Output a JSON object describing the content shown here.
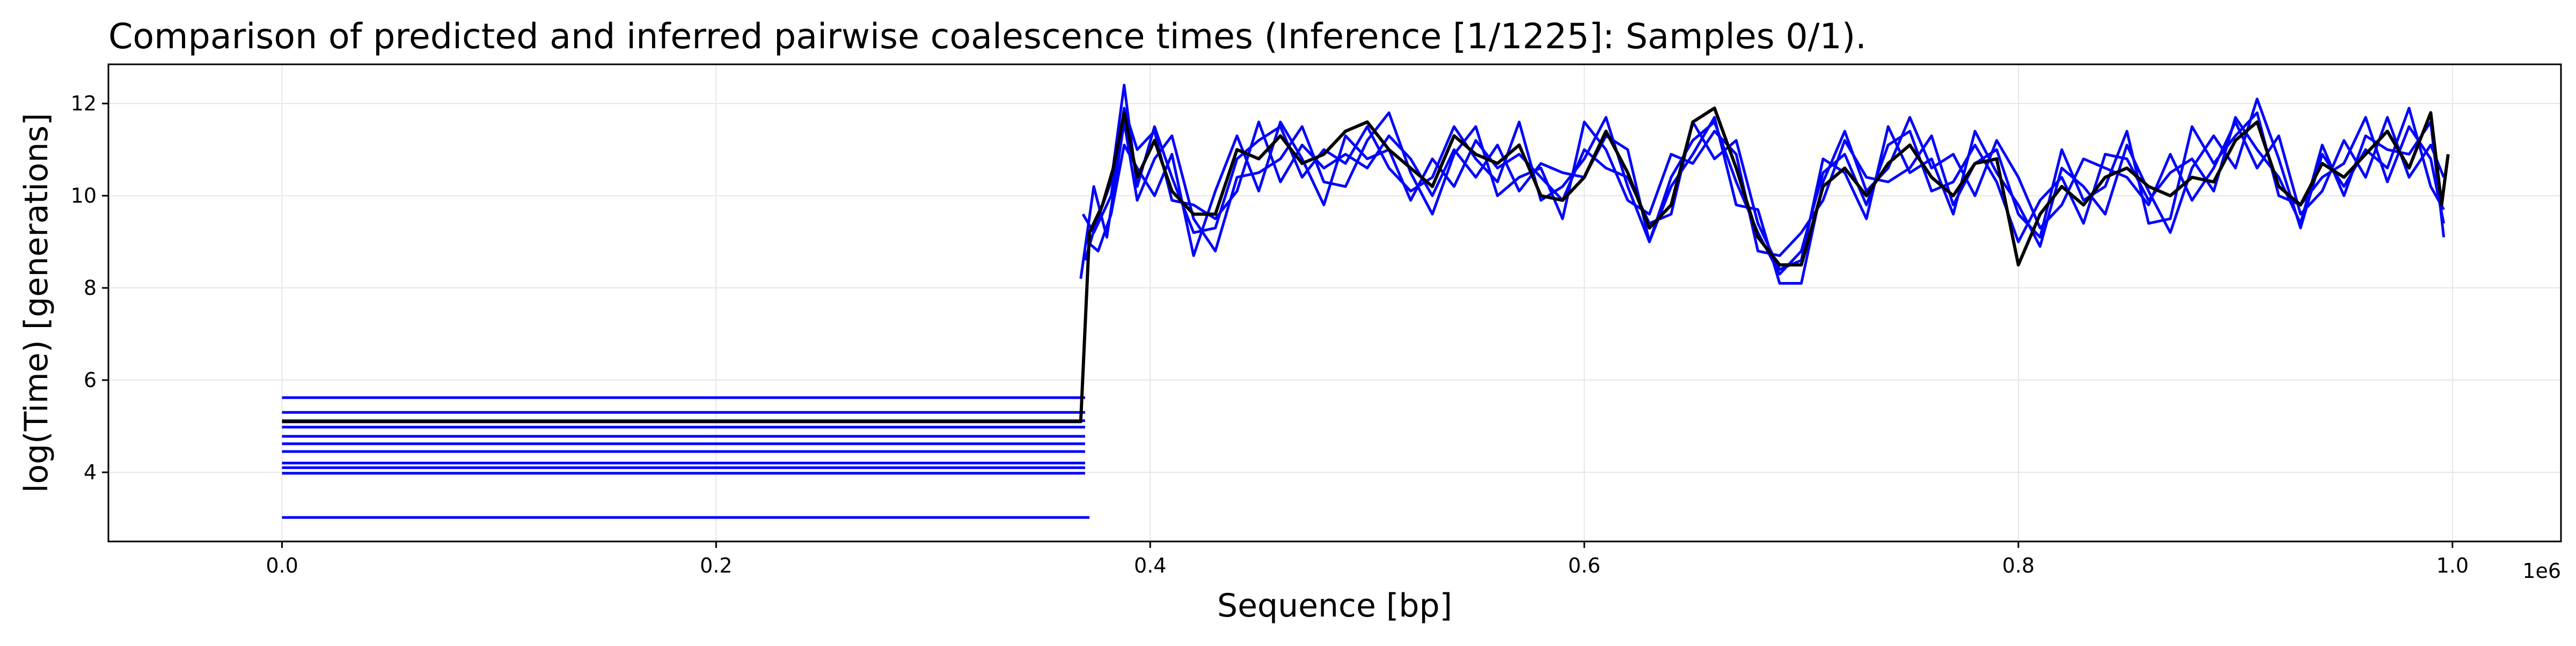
{
  "chart_data": {
    "type": "line",
    "title": "Comparison of predicted and inferred pairwise coalescence times (Inference [1/1225]: Samples 0/1).",
    "xlabel": "Sequence [bp]",
    "ylabel": "log(Time) [generations]",
    "x_offset_label": "1e6",
    "xlim": [
      -80000,
      1050000
    ],
    "ylim": [
      2.5,
      12.85
    ],
    "x_ticks": [
      0,
      200000,
      400000,
      600000,
      800000,
      1000000
    ],
    "x_tick_labels": [
      "0.0",
      "0.2",
      "0.4",
      "0.6",
      "0.8",
      "1.0"
    ],
    "y_ticks": [
      4,
      6,
      8,
      10,
      12
    ],
    "y_tick_labels": [
      "4",
      "6",
      "8",
      "10",
      "12"
    ],
    "grid": true,
    "colors": {
      "inferred": "#0000ff",
      "true": "#000000",
      "grid": "#e6e6e6",
      "axes": "#000000"
    },
    "series": [
      {
        "role": "true",
        "x": [
          0,
          368000,
          372000,
          378000,
          383000,
          388000,
          394000,
          402000,
          410000,
          420000,
          430000,
          440000,
          450000,
          460000,
          470000,
          480000,
          490000,
          500000,
          510000,
          520000,
          530000,
          540000,
          550000,
          560000,
          570000,
          580000,
          590000,
          600000,
          610000,
          620000,
          630000,
          640000,
          650000,
          660000,
          670000,
          680000,
          690000,
          700000,
          710000,
          720000,
          730000,
          740000,
          750000,
          760000,
          770000,
          780000,
          790000,
          800000,
          810000,
          820000,
          830000,
          840000,
          850000,
          860000,
          870000,
          880000,
          890000,
          900000,
          910000,
          920000,
          930000,
          940000,
          950000,
          960000,
          970000,
          980000,
          990000,
          995000,
          998000
        ],
        "y": [
          5.1,
          5.1,
          9.2,
          9.8,
          10.6,
          11.8,
          10.4,
          11.2,
          10.1,
          9.6,
          9.6,
          11.0,
          10.8,
          11.3,
          10.7,
          10.9,
          11.4,
          11.6,
          11.0,
          10.6,
          10.2,
          11.3,
          10.9,
          10.7,
          11.1,
          10.0,
          9.9,
          10.4,
          11.4,
          10.5,
          9.3,
          9.8,
          11.6,
          11.9,
          10.6,
          9.1,
          8.5,
          8.5,
          10.2,
          10.6,
          10.0,
          10.7,
          11.1,
          10.4,
          10.0,
          10.7,
          10.8,
          8.5,
          9.6,
          10.2,
          9.8,
          10.4,
          10.6,
          10.2,
          10.0,
          10.4,
          10.3,
          11.2,
          11.6,
          10.2,
          9.8,
          10.7,
          10.4,
          10.9,
          11.4,
          10.6,
          11.8,
          9.8,
          10.9
        ]
      },
      {
        "role": "inferred",
        "x": [
          0,
          370000
        ],
        "y": [
          5.62,
          5.62
        ]
      },
      {
        "role": "inferred",
        "x": [
          0,
          370000
        ],
        "y": [
          5.3,
          5.3
        ]
      },
      {
        "role": "inferred",
        "x": [
          0,
          370000
        ],
        "y": [
          5.12,
          5.12
        ]
      },
      {
        "role": "inferred",
        "x": [
          0,
          370000
        ],
        "y": [
          4.98,
          4.98
        ]
      },
      {
        "role": "inferred",
        "x": [
          0,
          370000
        ],
        "y": [
          4.78,
          4.78
        ]
      },
      {
        "role": "inferred",
        "x": [
          0,
          370000
        ],
        "y": [
          4.62,
          4.62
        ]
      },
      {
        "role": "inferred",
        "x": [
          0,
          370000
        ],
        "y": [
          4.45,
          4.45
        ]
      },
      {
        "role": "inferred",
        "x": [
          0,
          370000
        ],
        "y": [
          4.2,
          4.2
        ]
      },
      {
        "role": "inferred",
        "x": [
          0,
          370000
        ],
        "y": [
          4.1,
          4.1
        ]
      },
      {
        "role": "inferred",
        "x": [
          0,
          370000
        ],
        "y": [
          3.98,
          3.98
        ]
      },
      {
        "role": "inferred",
        "x": [
          0,
          372000
        ],
        "y": [
          3.02,
          3.02
        ]
      },
      {
        "role": "inferred",
        "x": [
          370000,
          375000,
          382000,
          388000,
          394000,
          402000,
          410000,
          420000,
          430000,
          440000,
          450000,
          460000,
          470000,
          480000,
          490000,
          500000,
          510000,
          520000,
          530000,
          540000,
          550000,
          560000,
          570000,
          580000,
          590000,
          600000,
          610000,
          620000,
          630000,
          640000,
          650000,
          660000,
          670000,
          680000,
          690000,
          700000,
          710000,
          720000,
          730000,
          740000,
          750000,
          760000,
          770000,
          780000,
          790000,
          800000,
          810000,
          820000,
          830000,
          840000,
          850000,
          860000,
          870000,
          880000,
          890000,
          900000,
          910000,
          920000,
          930000,
          940000,
          950000,
          960000,
          970000,
          980000,
          990000,
          996000
        ],
        "y": [
          8.6,
          9.4,
          10.3,
          12.4,
          10.2,
          11.5,
          10.4,
          9.2,
          9.3,
          10.8,
          11.2,
          11.5,
          10.4,
          11.0,
          10.7,
          11.5,
          10.6,
          10.1,
          10.4,
          11.5,
          10.8,
          10.3,
          11.6,
          9.9,
          10.2,
          10.8,
          11.7,
          10.2,
          9.0,
          10.4,
          11.2,
          11.6,
          10.3,
          9.2,
          8.3,
          8.8,
          10.5,
          10.9,
          9.8,
          11.1,
          11.4,
          10.1,
          10.3,
          11.1,
          10.3,
          9.0,
          9.9,
          10.4,
          9.4,
          10.9,
          10.8,
          9.9,
          10.5,
          10.8,
          10.1,
          11.7,
          11.0,
          10.4,
          9.4,
          11.1,
          10.0,
          11.3,
          11.0,
          10.9,
          11.6,
          9.1
        ]
      },
      {
        "role": "inferred",
        "x": [
          368000,
          374000,
          380000,
          388000,
          394000,
          402000,
          410000,
          420000,
          430000,
          440000,
          450000,
          460000,
          470000,
          480000,
          490000,
          500000,
          510000,
          520000,
          530000,
          540000,
          550000,
          560000,
          570000,
          580000,
          590000,
          600000,
          610000,
          620000,
          630000,
          640000,
          650000,
          660000,
          670000,
          680000,
          690000,
          700000,
          710000,
          720000,
          730000,
          740000,
          750000,
          760000,
          770000,
          780000,
          790000,
          800000,
          810000,
          820000,
          830000,
          840000,
          850000,
          860000,
          870000,
          880000,
          890000,
          900000,
          910000,
          920000,
          930000,
          940000,
          950000,
          960000,
          970000,
          980000,
          990000,
          996000
        ],
        "y": [
          8.2,
          10.2,
          9.1,
          11.6,
          9.9,
          10.8,
          11.3,
          9.5,
          8.8,
          10.4,
          10.5,
          10.8,
          11.5,
          10.3,
          10.2,
          11.2,
          11.8,
          10.5,
          9.6,
          10.9,
          11.5,
          10.0,
          10.4,
          10.6,
          9.5,
          11.6,
          11.0,
          9.9,
          9.6,
          10.9,
          10.7,
          11.4,
          10.9,
          8.8,
          8.7,
          9.2,
          9.9,
          11.2,
          10.4,
          10.3,
          10.6,
          11.3,
          9.8,
          10.7,
          11.0,
          9.6,
          9.1,
          11.0,
          9.9,
          10.2,
          11.4,
          9.4,
          9.5,
          11.5,
          10.7,
          11.3,
          11.8,
          10.0,
          9.8,
          10.4,
          10.7,
          11.7,
          10.3,
          11.5,
          10.8,
          9.4
        ]
      },
      {
        "role": "inferred",
        "x": [
          371000,
          376000,
          382000,
          388000,
          394000,
          402000,
          410000,
          420000,
          430000,
          440000,
          450000,
          460000,
          470000,
          480000,
          490000,
          500000,
          510000,
          520000,
          530000,
          540000,
          550000,
          560000,
          570000,
          580000,
          590000,
          600000,
          610000,
          620000,
          630000,
          640000,
          650000,
          660000,
          670000,
          680000,
          690000,
          700000,
          710000,
          720000,
          730000,
          740000,
          750000,
          760000,
          770000,
          780000,
          790000,
          800000,
          810000,
          820000,
          830000,
          840000,
          850000,
          860000,
          870000,
          880000,
          890000,
          900000,
          910000,
          920000,
          930000,
          940000,
          950000,
          960000,
          970000,
          980000,
          990000,
          996000
        ],
        "y": [
          9.0,
          8.8,
          9.6,
          11.1,
          10.6,
          10.0,
          10.9,
          8.7,
          10.1,
          11.3,
          10.1,
          11.6,
          10.8,
          9.8,
          11.3,
          10.8,
          11.0,
          9.9,
          10.8,
          10.2,
          11.2,
          10.6,
          10.9,
          10.4,
          9.9,
          11.0,
          10.6,
          10.4,
          9.4,
          9.6,
          11.6,
          10.8,
          11.2,
          9.4,
          8.4,
          8.6,
          10.8,
          10.5,
          9.5,
          11.5,
          10.5,
          10.8,
          9.6,
          11.4,
          10.5,
          9.8,
          8.9,
          10.6,
          10.2,
          9.6,
          11.1,
          10.1,
          9.2,
          10.6,
          11.3,
          10.6,
          12.1,
          10.8,
          9.3,
          10.9,
          10.2,
          11.0,
          10.6,
          11.9,
          10.2,
          9.7
        ]
      },
      {
        "role": "inferred",
        "x": [
          369000,
          374000,
          382000,
          388000,
          394000,
          402000,
          410000,
          420000,
          430000,
          440000,
          450000,
          460000,
          470000,
          480000,
          490000,
          500000,
          510000,
          520000,
          530000,
          540000,
          550000,
          560000,
          570000,
          580000,
          590000,
          600000,
          610000,
          620000,
          630000,
          640000,
          650000,
          660000,
          670000,
          680000,
          690000,
          700000,
          710000,
          720000,
          730000,
          740000,
          750000,
          760000,
          770000,
          780000,
          790000,
          800000,
          810000,
          820000,
          830000,
          840000,
          850000,
          860000,
          870000,
          880000,
          890000,
          900000,
          910000,
          920000,
          930000,
          940000,
          950000,
          960000,
          970000,
          980000,
          990000,
          996000
        ],
        "y": [
          9.6,
          9.2,
          10.0,
          11.9,
          11.0,
          11.4,
          9.9,
          9.8,
          9.5,
          10.1,
          11.6,
          10.3,
          11.1,
          10.6,
          10.9,
          10.6,
          11.3,
          10.8,
          10.0,
          11.0,
          10.4,
          11.1,
          10.1,
          10.7,
          10.5,
          10.4,
          11.3,
          11.0,
          9.0,
          10.2,
          10.9,
          11.7,
          9.8,
          9.7,
          8.1,
          8.1,
          10.3,
          11.4,
          10.1,
          10.6,
          11.7,
          10.6,
          10.9,
          10.0,
          11.2,
          10.4,
          9.3,
          9.8,
          10.8,
          10.6,
          10.4,
          9.8,
          10.9,
          9.9,
          10.6,
          11.6,
          10.6,
          11.3,
          9.6,
          10.1,
          11.2,
          10.4,
          11.7,
          10.4,
          11.1,
          10.4
        ]
      }
    ]
  }
}
